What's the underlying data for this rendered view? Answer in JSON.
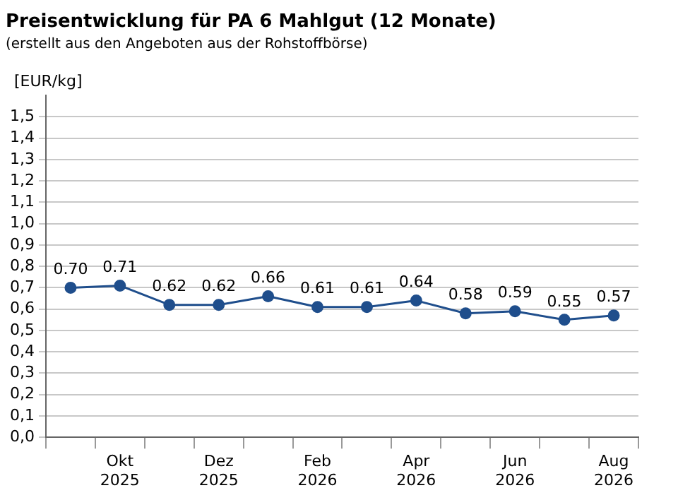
{
  "chart_data": {
    "type": "line",
    "title": "Preisentwicklung für PA 6 Mahlgut (12 Monate)",
    "subtitle": "(erstellt aus den Angeboten aus der Rohstoffbörse)",
    "ylabel": "[EUR/kg]",
    "categories": [
      null,
      "Okt 2025",
      null,
      "Dez 2025",
      null,
      "Feb 2026",
      null,
      "Apr 2026",
      null,
      "Jun 2026",
      null,
      "Aug 2026"
    ],
    "series": [
      {
        "color": "#1f4e8c",
        "values": [
          0.7,
          0.71,
          0.62,
          0.62,
          0.66,
          0.61,
          0.61,
          0.64,
          0.58,
          0.59,
          0.55,
          0.57
        ],
        "value_labels": [
          "0.70",
          "0.71",
          "0.62",
          "0.62",
          "0.66",
          "0.61",
          "0.61",
          "0.64",
          "0.58",
          "0.59",
          "0.55",
          "0.57"
        ]
      }
    ],
    "ylim": [
      0,
      1.6
    ],
    "yticks": [
      {
        "value": 0,
        "label": "0,0"
      },
      {
        "value": 0.1,
        "label": "0,1"
      },
      {
        "value": 0.2,
        "label": "0,2"
      },
      {
        "value": 0.3,
        "label": "0,3"
      },
      {
        "value": 0.4,
        "label": "0,4"
      },
      {
        "value": 0.5,
        "label": "0,5"
      },
      {
        "value": 0.6,
        "label": "0,6"
      },
      {
        "value": 0.7,
        "label": "0,7"
      },
      {
        "value": 0.8,
        "label": "0,8"
      },
      {
        "value": 0.9,
        "label": "0,9"
      },
      {
        "value": 1.0,
        "label": "1,0"
      },
      {
        "value": 1.1,
        "label": "1,1"
      },
      {
        "value": 1.2,
        "label": "1,2"
      },
      {
        "value": 1.3,
        "label": "1,3"
      },
      {
        "value": 1.4,
        "label": "1,4"
      },
      {
        "value": 1.5,
        "label": "1,5"
      }
    ],
    "grid": "y",
    "marker": "circle",
    "line_style": "solid",
    "legend": false
  }
}
